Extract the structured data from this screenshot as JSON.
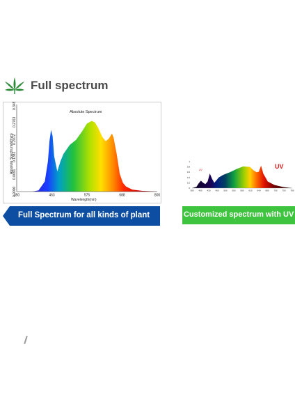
{
  "header": {
    "title": "Full spectrum",
    "icon": "cannabis-leaf-icon",
    "icon_color": "#2e8b3a"
  },
  "banners": {
    "left": {
      "label": "Full Spectrum for all kinds of plant",
      "color": "#0d4ea3"
    },
    "right": {
      "label": "Customized spectrum with UV",
      "color": "#3ec43e"
    }
  },
  "chart_data": [
    {
      "type": "area",
      "title": "Absolute Spectrum",
      "xlabel": "Wavelength(nm)",
      "ylabel": "Absolute Spectrum(W/nm)",
      "xlim": [
        350,
        800
      ],
      "ylim": [
        0,
        0.3454
      ],
      "x_ticks": [
        "350",
        "463",
        "575",
        "688",
        "800"
      ],
      "y_ticks": [
        "0.0000",
        "0.0691",
        "0.1381",
        "0.2072",
        "0.2763",
        "0.3454"
      ],
      "x": [
        350,
        400,
        420,
        440,
        450,
        455,
        460,
        465,
        470,
        480,
        490,
        500,
        520,
        540,
        560,
        575,
        590,
        600,
        610,
        625,
        635,
        645,
        655,
        660,
        670,
        680,
        690,
        700,
        720,
        750,
        800
      ],
      "y": [
        0.0,
        0.0,
        0.005,
        0.04,
        0.12,
        0.2,
        0.245,
        0.22,
        0.14,
        0.08,
        0.12,
        0.15,
        0.185,
        0.205,
        0.24,
        0.27,
        0.28,
        0.275,
        0.255,
        0.215,
        0.2,
        0.21,
        0.23,
        0.215,
        0.15,
        0.07,
        0.035,
        0.02,
        0.008,
        0.003,
        0.0
      ],
      "grid": false
    },
    {
      "type": "area",
      "annotation": "UV",
      "annotation_color": "#e02020",
      "small_label": "UV",
      "xlim": [
        350,
        800
      ],
      "ylim": [
        0,
        1
      ],
      "x_ticks": [
        "380",
        "400",
        "430",
        "460",
        "500",
        "550",
        "580",
        "610",
        "640",
        "680",
        "700",
        "750",
        "780"
      ],
      "y_ticks": [
        "0",
        "0.2",
        "0.4",
        "0.6",
        "0.8",
        "1"
      ],
      "x": [
        350,
        370,
        380,
        390,
        400,
        410,
        420,
        430,
        440,
        450,
        460,
        470,
        490,
        520,
        550,
        580,
        610,
        625,
        640,
        650,
        660,
        670,
        690,
        720,
        760,
        800
      ],
      "y": [
        0.0,
        0.05,
        0.18,
        0.28,
        0.2,
        0.15,
        0.25,
        0.55,
        0.35,
        0.2,
        0.3,
        0.4,
        0.5,
        0.6,
        0.72,
        0.82,
        0.8,
        0.68,
        0.6,
        0.62,
        0.85,
        0.55,
        0.25,
        0.12,
        0.04,
        0.0
      ],
      "grid": false
    }
  ]
}
